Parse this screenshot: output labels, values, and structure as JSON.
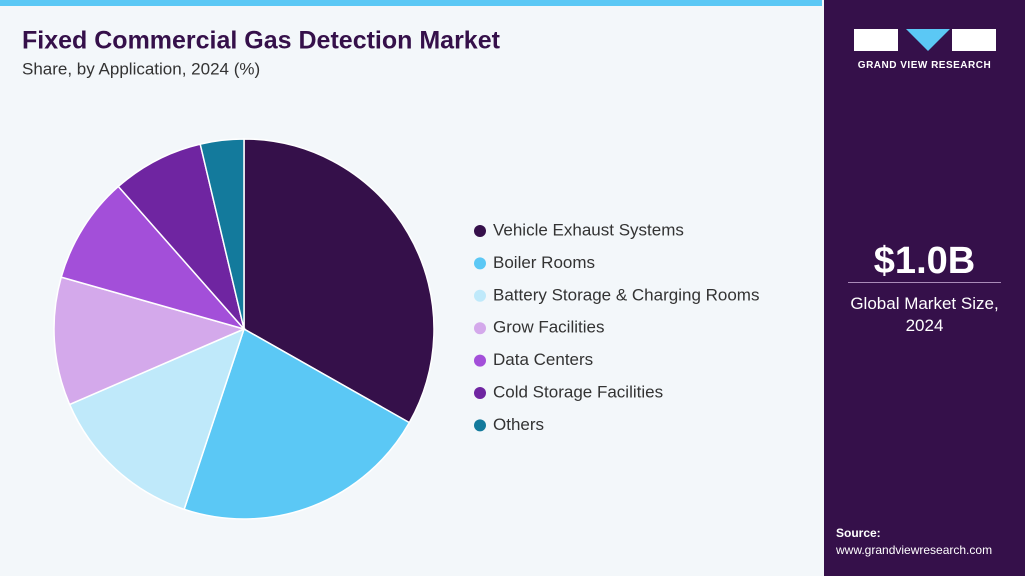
{
  "chart_data": {
    "type": "pie",
    "title": "Fixed Commercial Gas Detection Market",
    "subtitle": "Share, by Application, 2024 (%)",
    "categories": [
      "Vehicle Exhaust Systems",
      "Boiler Rooms",
      "Battery Storage & Charging Rooms",
      "Grow Facilities",
      "Data Centers",
      "Cold Storage Facilities",
      "Others"
    ],
    "values": [
      33.2,
      21.9,
      13.4,
      10.9,
      9.1,
      7.8,
      3.7
    ],
    "colors": [
      "#35104a",
      "#5bc8f5",
      "#bfe9fa",
      "#d4a9eb",
      "#a34fd9",
      "#6f25a1",
      "#137a9c"
    ],
    "legend": "right"
  },
  "sidebar": {
    "brand": "GRAND VIEW RESEARCH",
    "market_size": "$1.0B",
    "market_size_label": "Global Market Size, 2024",
    "source_label": "Source:",
    "source_url": "www.grandviewresearch.com"
  }
}
